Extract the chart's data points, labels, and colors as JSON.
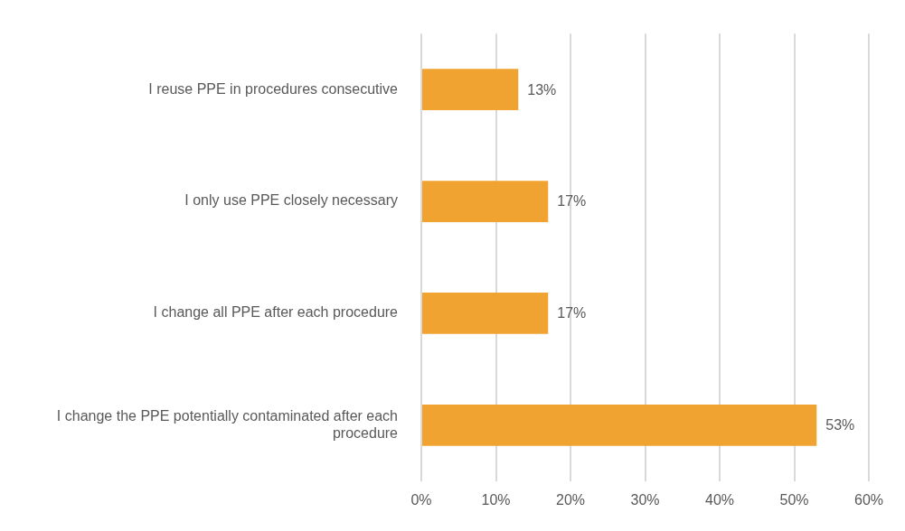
{
  "chart_data": {
    "type": "bar",
    "orientation": "horizontal",
    "categories": [
      "I reuse PPE in procedures consecutive",
      "I only use PPE closely necessary",
      "I change all PPE after each procedure",
      "I change the PPE potentially contaminated after each procedure"
    ],
    "values": [
      13,
      17,
      17,
      53
    ],
    "value_labels": [
      "13%",
      "17%",
      "17%",
      "53%"
    ],
    "color": "#f0a330",
    "xlim": [
      0,
      60
    ],
    "xticks": [
      {
        "value": 0,
        "label": "0%"
      },
      {
        "value": 10,
        "label": "10%"
      },
      {
        "value": 20,
        "label": "20%"
      },
      {
        "value": 30,
        "label": "30%"
      },
      {
        "value": 40,
        "label": "40%"
      },
      {
        "value": 50,
        "label": "50%"
      },
      {
        "value": 60,
        "label": "60%"
      }
    ],
    "grid": "x",
    "legend": false
  }
}
